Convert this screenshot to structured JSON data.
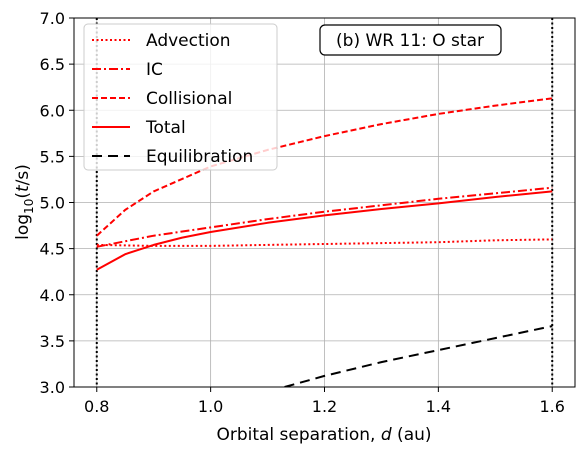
{
  "chart_data": {
    "type": "line",
    "annotation": "(b) WR 11: O star",
    "xlabel_text": "Orbital separation, ",
    "xlabel_var": "d",
    "xlabel_unit": " (au)",
    "ylabel_prefix": "log",
    "ylabel_sub": "10",
    "ylabel_open": "(",
    "ylabel_var": "t",
    "ylabel_close": "/s)",
    "xlim": [
      0.76,
      1.64
    ],
    "ylim": [
      3.0,
      7.0
    ],
    "xticks": [
      0.8,
      1.0,
      1.2,
      1.4,
      1.6
    ],
    "xtick_labels": [
      "0.8",
      "1.0",
      "1.2",
      "1.4",
      "1.6"
    ],
    "yticks": [
      3.0,
      3.5,
      4.0,
      4.5,
      5.0,
      5.5,
      6.0,
      6.5,
      7.0
    ],
    "ytick_labels": [
      "3.0",
      "3.5",
      "4.0",
      "4.5",
      "5.0",
      "5.5",
      "6.0",
      "6.5",
      "7.0"
    ],
    "grid": true,
    "legend_position": "top-left",
    "vlines": [
      0.8,
      1.6
    ],
    "series": [
      {
        "name": "Advection",
        "color": "#ff0000",
        "style": "dotted",
        "x": [
          0.8,
          0.9,
          1.0,
          1.1,
          1.2,
          1.3,
          1.4,
          1.5,
          1.6
        ],
        "y": [
          4.54,
          4.53,
          4.53,
          4.54,
          4.55,
          4.56,
          4.57,
          4.59,
          4.6
        ]
      },
      {
        "name": "IC",
        "color": "#ff0000",
        "style": "dashdot",
        "x": [
          0.8,
          0.9,
          1.0,
          1.1,
          1.2,
          1.3,
          1.4,
          1.5,
          1.6
        ],
        "y": [
          4.52,
          4.64,
          4.73,
          4.82,
          4.9,
          4.97,
          5.04,
          5.1,
          5.16
        ]
      },
      {
        "name": "Collisional",
        "color": "#ff0000",
        "style": "dashed",
        "x": [
          0.8,
          0.85,
          0.9,
          1.0,
          1.1,
          1.2,
          1.3,
          1.4,
          1.5,
          1.6
        ],
        "y": [
          4.64,
          4.92,
          5.12,
          5.39,
          5.57,
          5.72,
          5.85,
          5.96,
          6.05,
          6.13
        ]
      },
      {
        "name": "Total",
        "color": "#ff0000",
        "style": "solid",
        "x": [
          0.8,
          0.85,
          0.9,
          0.95,
          1.0,
          1.1,
          1.2,
          1.3,
          1.4,
          1.5,
          1.6
        ],
        "y": [
          4.27,
          4.44,
          4.54,
          4.62,
          4.68,
          4.78,
          4.86,
          4.93,
          4.99,
          5.06,
          5.12
        ]
      },
      {
        "name": "Equilibration",
        "color": "#000000",
        "style": "longdash",
        "x": [
          1.13,
          1.2,
          1.3,
          1.4,
          1.5,
          1.6
        ],
        "y": [
          3.0,
          3.12,
          3.27,
          3.4,
          3.53,
          3.66
        ]
      }
    ]
  }
}
